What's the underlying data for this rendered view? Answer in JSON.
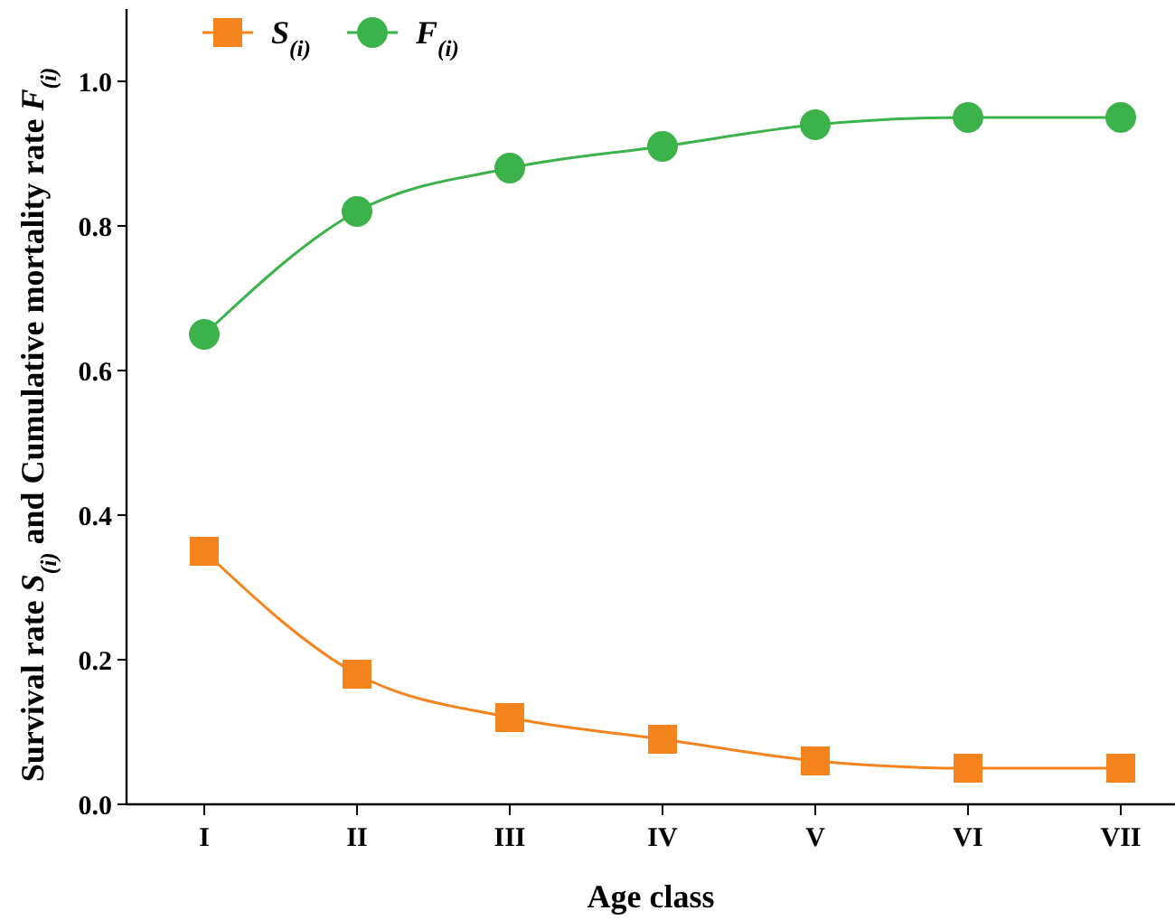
{
  "chart_data": {
    "type": "line",
    "xlabel": "Age class",
    "ylabel": "Survival rate S$_{(i)}$ and Cumulative mortality rate F$_{(i)}$",
    "categories": [
      "I",
      "II",
      "III",
      "IV",
      "V",
      "VI",
      "VII"
    ],
    "ylim": [
      0,
      1.1
    ],
    "yticks": [
      {
        "value": 0,
        "label": "0.0"
      },
      0.2,
      0.4,
      0.6,
      0.8,
      {
        "value": 1,
        "label": "1.0"
      }
    ],
    "legend": "top left",
    "grid": false,
    "series": [
      {
        "name": "S$_{(i)}$",
        "color": "#f5841f",
        "marker": "square",
        "values": [
          0.35,
          0.18,
          0.12,
          0.09,
          0.06,
          0.05,
          0.05
        ]
      },
      {
        "name": "F$_{(i)}$",
        "color": "#3cb34a",
        "marker": "circle",
        "values": [
          0.65,
          0.82,
          0.88,
          0.91,
          0.94,
          0.95,
          0.95
        ]
      }
    ]
  }
}
